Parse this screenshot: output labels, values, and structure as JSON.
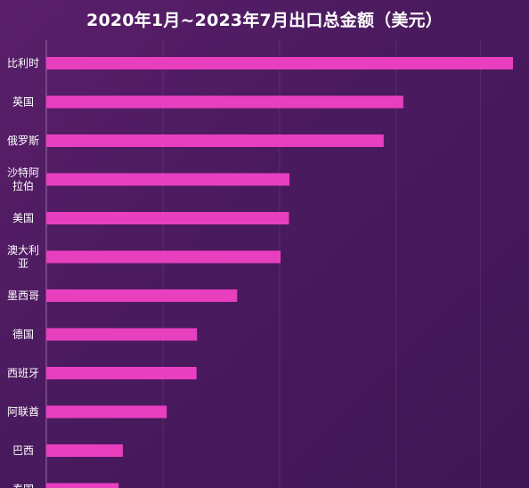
{
  "chart_data": {
    "type": "bar",
    "orientation": "horizontal",
    "title": "2020年1月~2023年7月出口总金额（美元）",
    "categories": [
      [
        "比利时"
      ],
      [
        "英国"
      ],
      [
        "俄罗斯"
      ],
      [
        "沙特阿",
        "拉伯"
      ],
      [
        "美国"
      ],
      [
        "澳大利",
        "亚"
      ],
      [
        "墨西哥"
      ],
      [
        "德国"
      ],
      [
        "西班牙"
      ],
      [
        "阿联酋"
      ],
      [
        "巴西"
      ],
      [
        "泰国"
      ]
    ],
    "values": [
      100,
      76.5,
      72.3,
      52.1,
      52.0,
      50.2,
      40.9,
      32.3,
      32.2,
      25.8,
      16.4,
      15.5
    ],
    "xlim": [
      0,
      100
    ],
    "colors": {
      "bar": "#e83fbf",
      "background": "#4e1b61",
      "grid": "#7a4088"
    },
    "grid": true,
    "legend": "none"
  }
}
